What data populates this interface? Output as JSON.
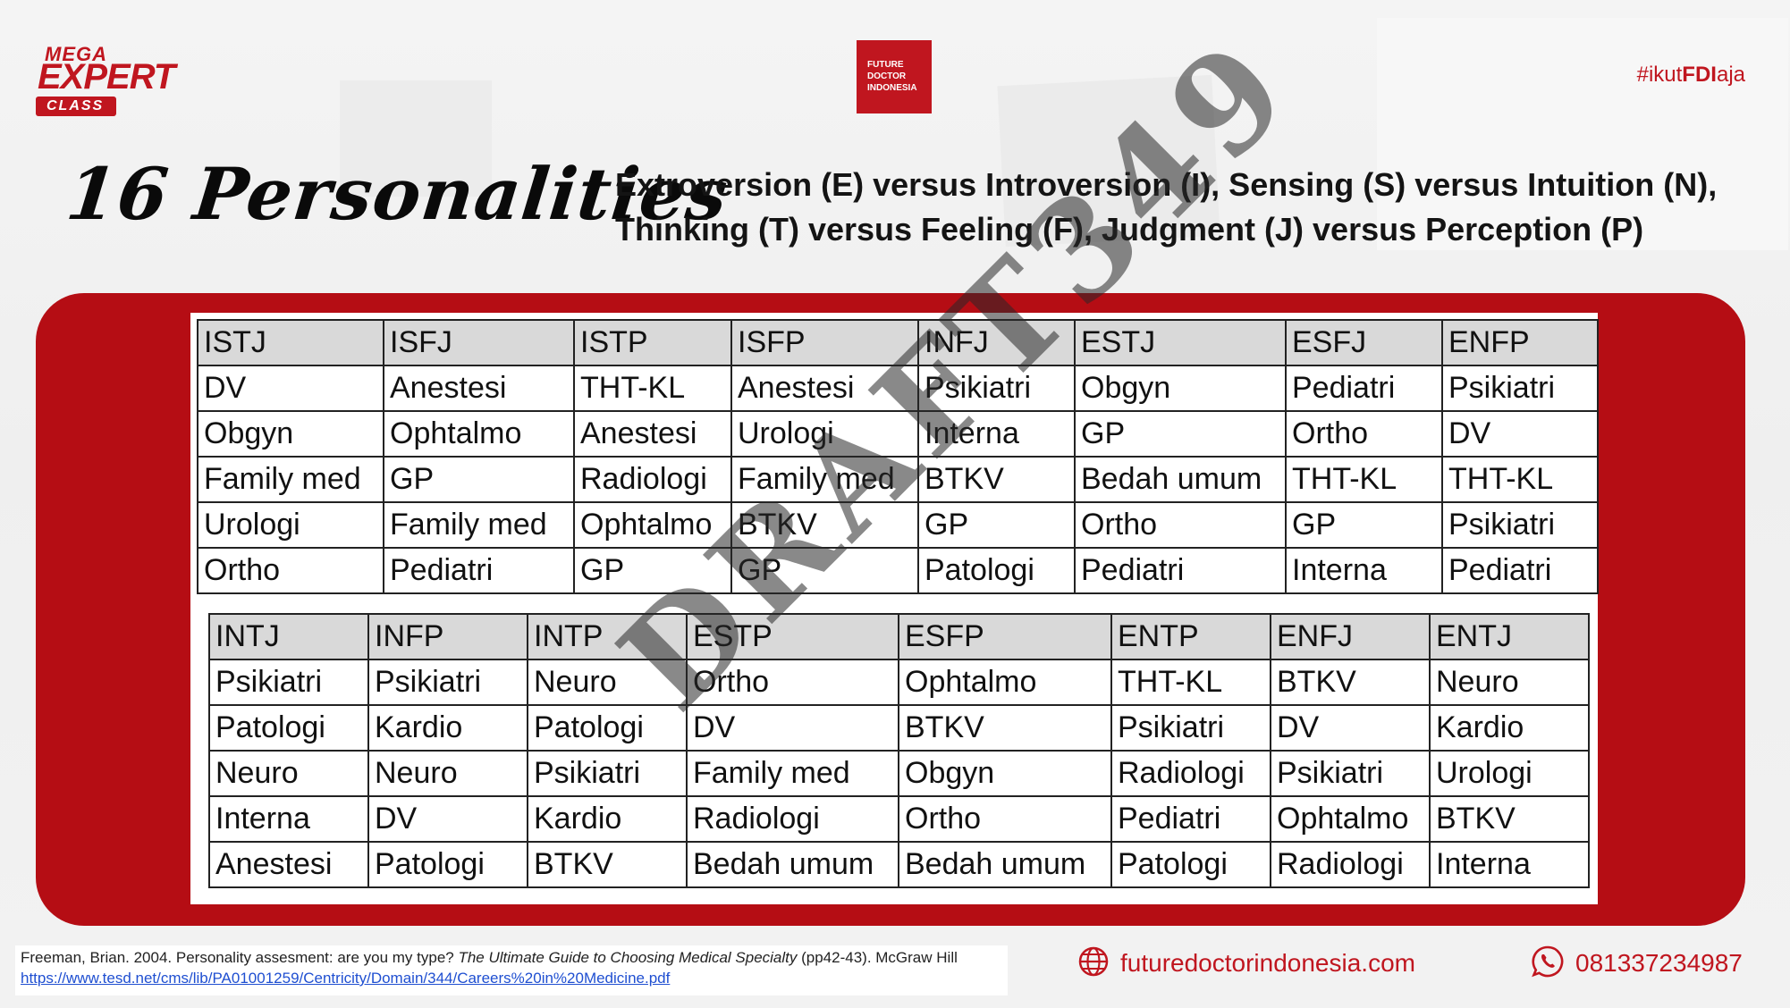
{
  "header": {
    "logo_mega": "MEGA",
    "logo_expert": "EXPERT",
    "logo_class": "CLASS",
    "fdi_line1": "FUTURE",
    "fdi_line2": "DOCTOR",
    "fdi_line3": "INDONESIA",
    "hashtag_prefix": "#ikut",
    "hashtag_bold": "FDI",
    "hashtag_suffix": "aja"
  },
  "title": "16 Personalities",
  "subtitle_line1": "Extroversion (E) versus Introversion (I), Sensing (S) versus Intuition (N),",
  "subtitle_line2": "Thinking (T) versus Feeling (F), Judgment (J) versus Perception (P)",
  "watermark": "DRAFT349",
  "table1": {
    "headers": [
      "ISTJ",
      "ISFJ",
      "ISTP",
      "ISFP",
      "INFJ",
      "ESTJ",
      "ESFJ",
      "ENFP"
    ],
    "rows": [
      [
        "DV",
        "Anestesi",
        "THT-KL",
        "Anestesi",
        "Psikiatri",
        "Obgyn",
        "Pediatri",
        "Psikiatri"
      ],
      [
        "Obgyn",
        "Ophtalmo",
        "Anestesi",
        "Urologi",
        "Interna",
        "GP",
        "Ortho",
        "DV"
      ],
      [
        "Family med",
        "GP",
        "Radiologi",
        "Family med",
        "BTKV",
        "Bedah umum",
        "THT-KL",
        "THT-KL"
      ],
      [
        "Urologi",
        "Family med",
        "Ophtalmo",
        "BTKV",
        "GP",
        "Ortho",
        "GP",
        "Psikiatri"
      ],
      [
        "Ortho",
        "Pediatri",
        "GP",
        "GP",
        "Patologi",
        "Pediatri",
        "Interna",
        "Pediatri"
      ]
    ]
  },
  "table2": {
    "headers": [
      "INTJ",
      "INFP",
      "INTP",
      "ESTP",
      "ESFP",
      "ENTP",
      "ENFJ",
      "ENTJ"
    ],
    "rows": [
      [
        "Psikiatri",
        "Psikiatri",
        "Neuro",
        "Ortho",
        "Ophtalmo",
        "THT-KL",
        "BTKV",
        "Neuro"
      ],
      [
        "Patologi",
        "Kardio",
        "Patologi",
        "DV",
        "BTKV",
        "Psikiatri",
        "DV",
        "Kardio"
      ],
      [
        "Neuro",
        "Neuro",
        "Psikiatri",
        "Family med",
        "Obgyn",
        "Radiologi",
        "Psikiatri",
        "Urologi"
      ],
      [
        "Interna",
        "DV",
        "Kardio",
        "Radiologi",
        "Ortho",
        "Pediatri",
        "Ophtalmo",
        "BTKV"
      ],
      [
        "Anestesi",
        "Patologi",
        "BTKV",
        "Bedah umum",
        "Bedah umum",
        "Patologi",
        "Radiologi",
        "Interna"
      ]
    ]
  },
  "footer": {
    "citation_text": "Freeman, Brian. 2004. Personality assesment: are you my type?",
    "citation_italic": "The Ultimate Guide to Choosing Medical Specialty",
    "citation_rest": "(pp42-43). McGraw Hill",
    "citation_url": "https://www.tesd.net/cms/lib/PA01001259/Centricity/Domain/344/Careers%20in%20Medicine.pdf",
    "website": "futuredoctorindonesia.com",
    "website_icon": "globe-icon",
    "phone": "081337234987",
    "phone_icon": "whatsapp-icon"
  }
}
